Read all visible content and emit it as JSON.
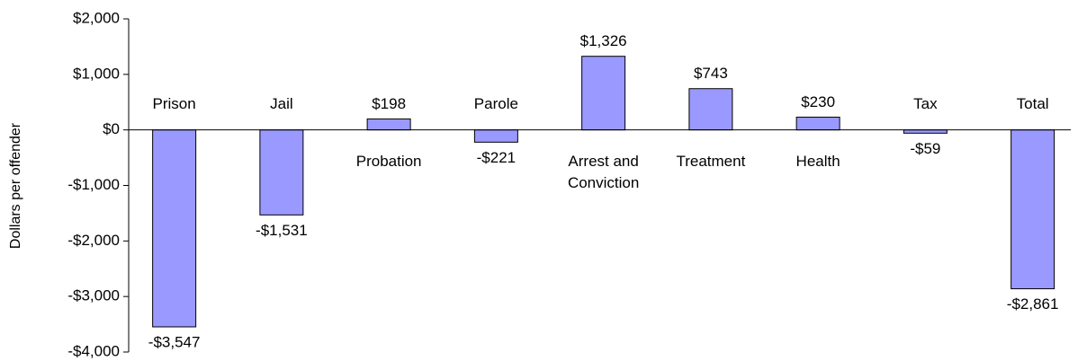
{
  "chart_data": {
    "type": "bar",
    "y_label": "Dollars per offender",
    "categories": [
      "Prison",
      "Jail",
      "Probation",
      "Parole",
      "Arrest and Conviction",
      "Treatment",
      "Health",
      "Tax",
      "Total"
    ],
    "values": [
      -3547,
      -1531,
      198,
      -221,
      1326,
      743,
      230,
      -59,
      -2861
    ],
    "value_labels": [
      "-$3,547",
      "-$1,531",
      "$198",
      "-$221",
      "$1,326",
      "$743",
      "$230",
      "-$59",
      "-$2,861"
    ],
    "color": "#9999ff",
    "ylim": [
      -4000,
      2000
    ],
    "yticks": [
      {
        "value": -4000,
        "label": "-$4,000"
      },
      {
        "value": -3000,
        "label": "-$3,000"
      },
      {
        "value": -2000,
        "label": "-$2,000"
      },
      {
        "value": -1000,
        "label": "-$1,000"
      },
      {
        "value": 0,
        "label": "$0"
      },
      {
        "value": 1000,
        "label": "$1,000"
      },
      {
        "value": 2000,
        "label": "$2,000"
      }
    ],
    "grid": false
  }
}
